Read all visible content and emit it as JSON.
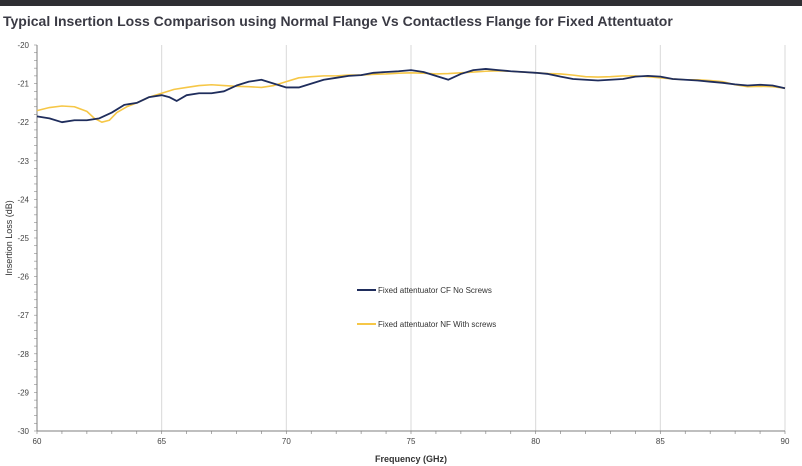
{
  "chart_data": {
    "type": "line",
    "title": "Typical Insertion Loss Comparison using Normal Flange Vs Contactless Flange for Fixed Attentuator",
    "xlabel": "Frequency (GHz)",
    "ylabel": "Insertion Loss (dB)",
    "xlim": [
      60,
      90
    ],
    "ylim": [
      -30,
      -20
    ],
    "xticks": [
      60,
      65,
      70,
      75,
      80,
      85,
      90
    ],
    "yticks": [
      -20,
      -21,
      -22,
      -23,
      -24,
      -25,
      -26,
      -27,
      -28,
      -29,
      -30
    ],
    "grid": "vertical",
    "legend_position": "center",
    "series": [
      {
        "name": "Fixed attentuator CF No Screws",
        "color": "#1f2d5c",
        "x": [
          60,
          60.5,
          61,
          61.5,
          62,
          62.5,
          63,
          63.5,
          64,
          64.5,
          65,
          65.3,
          65.6,
          66,
          66.5,
          67,
          67.5,
          68,
          68.5,
          69,
          69.5,
          70,
          70.5,
          71,
          71.5,
          72,
          72.5,
          73,
          73.5,
          74,
          74.5,
          75,
          75.5,
          76,
          76.5,
          77,
          77.5,
          78,
          78.5,
          79,
          79.5,
          80,
          80.5,
          81,
          81.5,
          82,
          82.5,
          83,
          83.5,
          84,
          84.5,
          85,
          85.5,
          86,
          86.5,
          87,
          87.5,
          88,
          88.5,
          89,
          89.5,
          90
        ],
        "values": [
          -21.85,
          -21.9,
          -22.0,
          -21.95,
          -21.95,
          -21.9,
          -21.75,
          -21.55,
          -21.5,
          -21.35,
          -21.3,
          -21.35,
          -21.45,
          -21.3,
          -21.25,
          -21.25,
          -21.2,
          -21.05,
          -20.95,
          -20.9,
          -21.0,
          -21.1,
          -21.1,
          -21.0,
          -20.9,
          -20.85,
          -20.8,
          -20.78,
          -20.72,
          -20.7,
          -20.68,
          -20.65,
          -20.7,
          -20.8,
          -20.9,
          -20.75,
          -20.65,
          -20.62,
          -20.65,
          -20.68,
          -20.7,
          -20.72,
          -20.75,
          -20.82,
          -20.88,
          -20.9,
          -20.92,
          -20.9,
          -20.88,
          -20.82,
          -20.8,
          -20.82,
          -20.88,
          -20.9,
          -20.92,
          -20.95,
          -20.98,
          -21.02,
          -21.05,
          -21.03,
          -21.05,
          -21.12
        ]
      },
      {
        "name": "Fixed attentuator NF With screws",
        "color": "#f6c747",
        "x": [
          60,
          60.5,
          61,
          61.5,
          62,
          62.3,
          62.6,
          62.9,
          63.2,
          63.6,
          64,
          64.5,
          65,
          65.5,
          66,
          66.5,
          67,
          67.5,
          68,
          68.5,
          69,
          69.5,
          70,
          70.5,
          71,
          71.5,
          72,
          72.5,
          73,
          73.5,
          74,
          74.5,
          75,
          75.5,
          76,
          76.5,
          77,
          77.5,
          78,
          78.5,
          79,
          79.5,
          80,
          80.5,
          81,
          81.5,
          82,
          82.5,
          83,
          83.5,
          84,
          84.5,
          85,
          85.5,
          86,
          86.5,
          87,
          87.5,
          88,
          88.5,
          89,
          89.5,
          90
        ],
        "values": [
          -21.7,
          -21.62,
          -21.58,
          -21.6,
          -21.72,
          -21.9,
          -22.0,
          -21.95,
          -21.75,
          -21.6,
          -21.5,
          -21.35,
          -21.25,
          -21.15,
          -21.1,
          -21.05,
          -21.03,
          -21.05,
          -21.07,
          -21.08,
          -21.1,
          -21.05,
          -20.95,
          -20.85,
          -20.82,
          -20.8,
          -20.8,
          -20.78,
          -20.78,
          -20.76,
          -20.75,
          -20.73,
          -20.72,
          -20.73,
          -20.75,
          -20.74,
          -20.72,
          -20.7,
          -20.68,
          -20.67,
          -20.68,
          -20.7,
          -20.72,
          -20.74,
          -20.75,
          -20.78,
          -20.82,
          -20.83,
          -20.82,
          -20.8,
          -20.8,
          -20.82,
          -20.85,
          -20.88,
          -20.9,
          -20.9,
          -20.92,
          -20.95,
          -21.03,
          -21.08,
          -21.07,
          -21.08,
          -21.12
        ]
      }
    ]
  }
}
